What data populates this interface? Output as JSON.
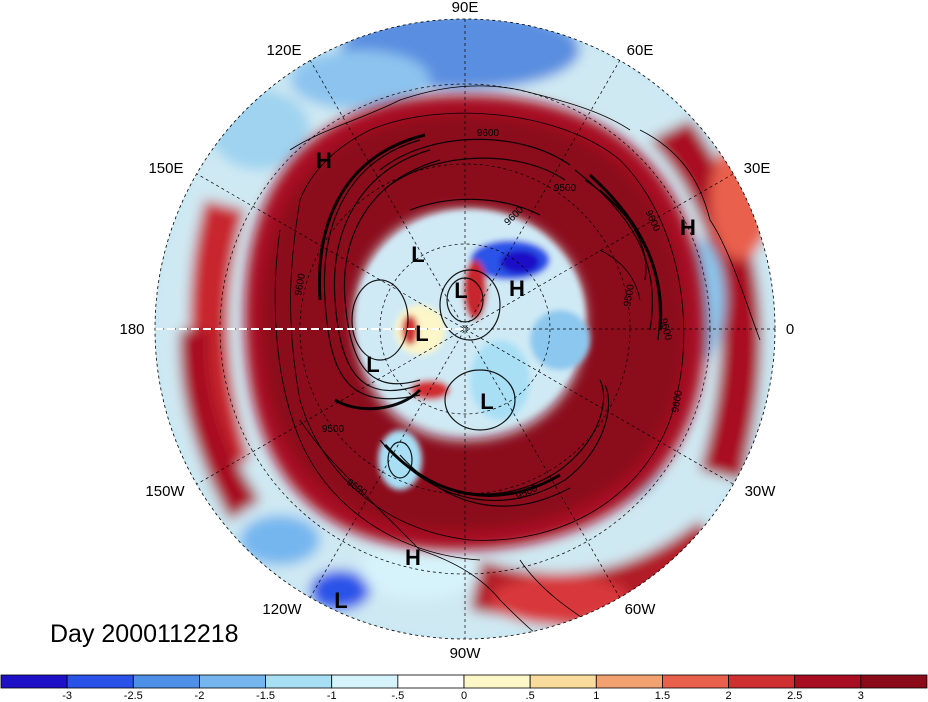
{
  "map": {
    "longitude_labels": [
      "90E",
      "60E",
      "30E",
      "0",
      "30W",
      "60W",
      "90W",
      "120W",
      "150W",
      "180",
      "150E",
      "120E"
    ],
    "pressure_systems": [
      {
        "type": "H"
      },
      {
        "type": "H"
      },
      {
        "type": "H"
      },
      {
        "type": "H"
      },
      {
        "type": "L"
      },
      {
        "type": "L"
      },
      {
        "type": "L"
      },
      {
        "type": "L"
      },
      {
        "type": "L"
      },
      {
        "type": "L"
      }
    ],
    "contour_labels": [
      "9600",
      "9500",
      "9600",
      "9500",
      "9600",
      "9600",
      "9500",
      "9600",
      "9500",
      "9600",
      "9600"
    ]
  },
  "day_label": "Day 2000112218",
  "colorbar": {
    "tick_labels": [
      "-3",
      "-2.5",
      "-2",
      "-1.5",
      "-1",
      "-.5",
      "0",
      ".5",
      "1",
      "1.5",
      "2",
      "2.5",
      "3"
    ],
    "colors": [
      "#1d10c7",
      "#2a52e8",
      "#4e8fe8",
      "#76b6ef",
      "#a8dff5",
      "#d6f2fa",
      "#ffffff",
      "#fcf6c8",
      "#f9dc9c",
      "#f2a171",
      "#e9604d",
      "#d02f32",
      "#a80d21",
      "#8b0a1a"
    ]
  }
}
